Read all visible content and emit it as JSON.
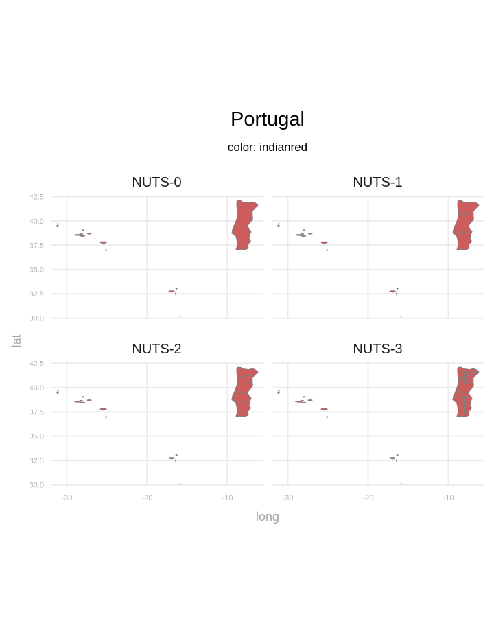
{
  "figure": {
    "title": "Portugal",
    "subtitle": "color: indianred",
    "xlabel": "long",
    "ylabel": "lat"
  },
  "colors": {
    "fill": "#cd5c5c",
    "border": "#7f7f7f",
    "grid": "#ebebeb",
    "tick_text": "#b3b3b3",
    "axis_label": "#a6a6a6",
    "text": "#1a1a1a"
  },
  "axes": {
    "x_ticks": [
      -30,
      -20,
      -10
    ],
    "x_tick_labels": [
      "-30",
      "-20",
      "-10"
    ],
    "y_ticks": [
      30,
      32.5,
      35,
      37.5,
      40,
      42.5
    ],
    "y_tick_labels": [
      "30.0",
      "32.5",
      "35.0",
      "37.5",
      "40.0",
      "42.5"
    ],
    "xlim": [
      -32,
      -5.6
    ],
    "ylim": [
      29.9,
      42.6
    ]
  },
  "panels": [
    {
      "label": "NUTS-0"
    },
    {
      "label": "NUTS-1"
    },
    {
      "label": "NUTS-2"
    },
    {
      "label": "NUTS-3"
    }
  ]
}
